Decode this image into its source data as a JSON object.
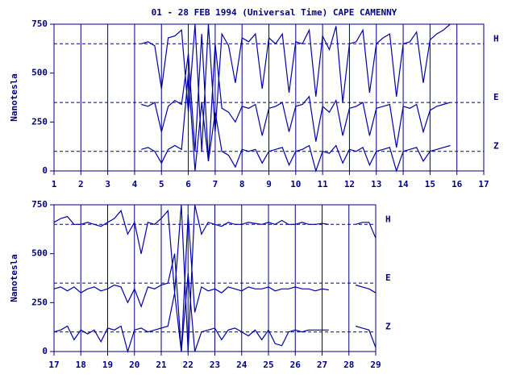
{
  "chart_data": [
    {
      "type": "line",
      "title": "01 - 28 FEB 1994 (Universal Time) CAPE CAMENNY",
      "y_label": "Nanotesla",
      "xlim": [
        1,
        17
      ],
      "xticks": [
        1,
        2,
        3,
        4,
        5,
        6,
        7,
        8,
        9,
        10,
        11,
        12,
        13,
        14,
        15,
        16,
        17
      ],
      "ylim": [
        0,
        750
      ],
      "yticks": [
        0,
        250,
        500,
        750
      ],
      "grid": true,
      "x": [
        4.25,
        4.5,
        4.75,
        5,
        5.25,
        5.5,
        5.75,
        6,
        6.25,
        6.5,
        6.75,
        7,
        7.25,
        7.5,
        7.75,
        8,
        8.25,
        8.5,
        8.75,
        9,
        9.25,
        9.5,
        9.75,
        10,
        10.25,
        10.5,
        10.75,
        11,
        11.25,
        11.5,
        11.75,
        12,
        12.25,
        12.5,
        12.75,
        13,
        13.25,
        13.5,
        13.75,
        14,
        14.25,
        14.5,
        14.75,
        15,
        15.25,
        15.5,
        15.75
      ],
      "series": [
        {
          "name": "H",
          "color": "#0000a8",
          "baseline": 650,
          "values": [
            650,
            660,
            640,
            420,
            680,
            690,
            720,
            300,
            750,
            100,
            750,
            200,
            700,
            640,
            450,
            680,
            660,
            700,
            420,
            680,
            650,
            700,
            400,
            660,
            650,
            720,
            380,
            690,
            620,
            740,
            350,
            650,
            660,
            720,
            400,
            650,
            680,
            700,
            380,
            650,
            660,
            710,
            450,
            670,
            700,
            720,
            750
          ]
        },
        {
          "name": "E",
          "color": "#0000a8",
          "baseline": 350,
          "values": [
            340,
            330,
            350,
            200,
            330,
            360,
            340,
            600,
            100,
            700,
            50,
            650,
            320,
            300,
            250,
            330,
            320,
            340,
            180,
            320,
            330,
            350,
            200,
            330,
            340,
            380,
            150,
            330,
            300,
            360,
            180,
            320,
            330,
            350,
            180,
            320,
            330,
            340,
            120,
            330,
            320,
            340,
            200,
            310,
            330,
            340,
            350
          ]
        },
        {
          "name": "Z",
          "color": "#0000a8",
          "baseline": 100,
          "values": [
            110,
            120,
            100,
            40,
            110,
            130,
            110,
            500,
            0,
            350,
            50,
            300,
            100,
            80,
            20,
            110,
            100,
            110,
            40,
            100,
            110,
            120,
            30,
            100,
            110,
            130,
            0,
            100,
            90,
            130,
            40,
            110,
            100,
            120,
            30,
            100,
            110,
            120,
            0,
            100,
            110,
            120,
            50,
            100,
            110,
            120,
            130
          ]
        }
      ]
    },
    {
      "type": "line",
      "y_label": "Nanotesla",
      "xlim": [
        17,
        29
      ],
      "xticks": [
        17,
        18,
        19,
        20,
        21,
        22,
        23,
        24,
        25,
        26,
        27,
        28,
        29
      ],
      "ylim": [
        0,
        750
      ],
      "yticks": [
        0,
        250,
        500,
        750
      ],
      "grid": true,
      "x": [
        17,
        17.25,
        17.5,
        17.75,
        18,
        18.25,
        18.5,
        18.75,
        19,
        19.25,
        19.5,
        19.75,
        20,
        20.25,
        20.5,
        20.75,
        21,
        21.25,
        21.5,
        21.75,
        22,
        22.25,
        22.5,
        22.75,
        23,
        23.25,
        23.5,
        23.75,
        24,
        24.25,
        24.5,
        24.75,
        25,
        25.25,
        25.5,
        25.75,
        26,
        26.25,
        26.5,
        26.75,
        27,
        27.25,
        27.75,
        28.25,
        28.5,
        28.75,
        29
      ],
      "series": [
        {
          "name": "H",
          "color": "#0000a8",
          "baseline": 650,
          "values": [
            660,
            680,
            690,
            650,
            650,
            660,
            650,
            640,
            660,
            680,
            720,
            600,
            660,
            500,
            660,
            650,
            680,
            720,
            300,
            750,
            0,
            750,
            600,
            660,
            650,
            640,
            660,
            650,
            650,
            660,
            655,
            650,
            660,
            650,
            670,
            650,
            650,
            660,
            650,
            650,
            655,
            650,
            null,
            650,
            660,
            660,
            580
          ]
        },
        {
          "name": "E",
          "color": "#0000a8",
          "baseline": 350,
          "values": [
            320,
            330,
            310,
            330,
            300,
            320,
            330,
            310,
            320,
            340,
            330,
            250,
            320,
            230,
            330,
            320,
            340,
            350,
            500,
            0,
            700,
            200,
            330,
            310,
            320,
            300,
            330,
            320,
            310,
            330,
            320,
            320,
            330,
            310,
            320,
            320,
            330,
            320,
            320,
            310,
            320,
            315,
            null,
            340,
            330,
            320,
            300
          ]
        },
        {
          "name": "Z",
          "color": "#0000a8",
          "baseline": 100,
          "values": [
            100,
            110,
            130,
            60,
            110,
            90,
            110,
            50,
            120,
            110,
            130,
            0,
            110,
            120,
            100,
            110,
            120,
            130,
            300,
            0,
            400,
            0,
            100,
            110,
            120,
            60,
            110,
            120,
            100,
            80,
            110,
            60,
            110,
            40,
            30,
            100,
            110,
            100,
            110,
            110,
            110,
            110,
            null,
            130,
            120,
            110,
            20
          ]
        }
      ]
    }
  ]
}
